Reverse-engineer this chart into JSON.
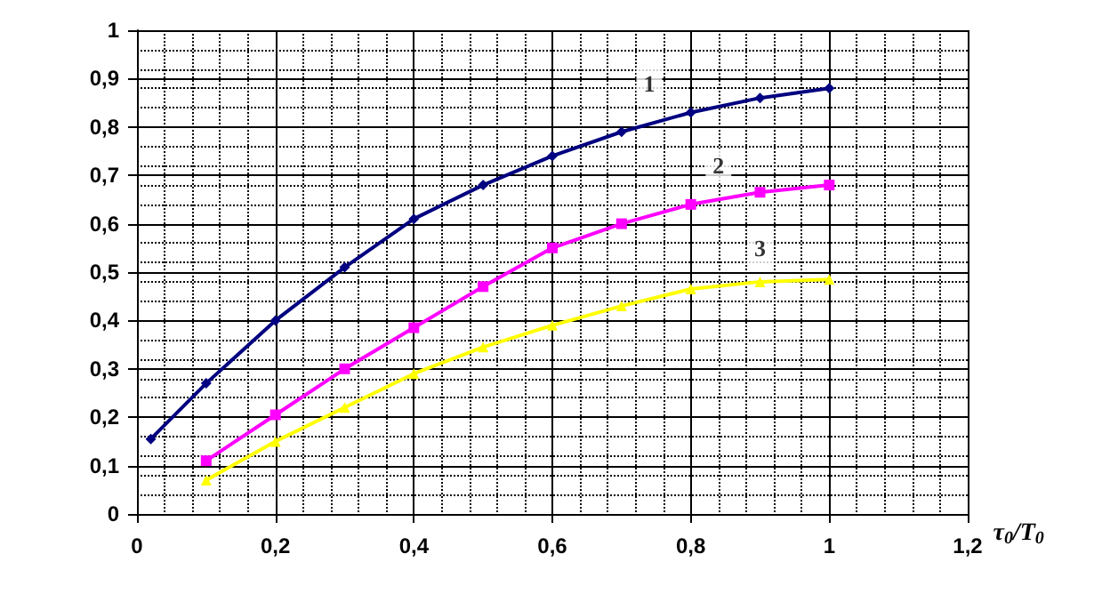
{
  "chart_data": {
    "type": "line",
    "xlabel": "τ$_{0}$/T$_{0}$",
    "xlim": [
      0,
      1.2
    ],
    "xticks": [
      0,
      {
        "value": 0.2,
        "label": "0,2"
      },
      {
        "value": 0.4,
        "label": "0,4"
      },
      {
        "value": 0.6,
        "label": "0,6"
      },
      {
        "value": 0.8,
        "label": "0,8"
      },
      1,
      {
        "value": 1.2,
        "label": "1,2"
      }
    ],
    "ylim": [
      0,
      1
    ],
    "yticks": [
      0,
      {
        "value": 0.1,
        "label": "0,1"
      },
      {
        "value": 0.2,
        "label": "0,2"
      },
      {
        "value": 0.3,
        "label": "0,3"
      },
      {
        "value": 0.4,
        "label": "0,4"
      },
      {
        "value": 0.5,
        "label": "0,5"
      },
      {
        "value": 0.6,
        "label": "0,6"
      },
      {
        "value": 0.7,
        "label": "0,7"
      },
      {
        "value": 0.8,
        "label": "0,8"
      },
      {
        "value": 0.9,
        "label": "0,9"
      },
      1
    ],
    "grid": true,
    "line_style": "solid",
    "series": [
      {
        "color": "#000080",
        "marker": "diamond",
        "x": [
          0.02,
          0.1,
          0.2,
          0.3,
          0.4,
          0.5,
          0.6,
          0.7,
          0.8,
          0.9,
          1.0
        ],
        "values": [
          0.155,
          0.27,
          0.4,
          0.51,
          0.61,
          0.68,
          0.74,
          0.79,
          0.83,
          0.86,
          0.88
        ]
      },
      {
        "color": "#ff00ff",
        "marker": "square",
        "x": [
          0.1,
          0.2,
          0.3,
          0.4,
          0.5,
          0.6,
          0.7,
          0.8,
          0.9,
          1.0
        ],
        "values": [
          0.11,
          0.205,
          0.3,
          0.385,
          0.47,
          0.55,
          0.6,
          0.64,
          0.665,
          0.68
        ]
      },
      {
        "color": "#ffff00",
        "marker": "triangle",
        "x": [
          0.1,
          0.2,
          0.3,
          0.4,
          0.5,
          0.6,
          0.7,
          0.8,
          0.9,
          1.0
        ],
        "values": [
          0.07,
          0.15,
          0.22,
          0.29,
          0.345,
          0.39,
          0.43,
          0.465,
          0.48,
          0.485
        ]
      }
    ],
    "annotations": [
      {
        "text": "1",
        "x": 0.74,
        "y": 0.89
      },
      {
        "text": "2",
        "x": 0.84,
        "y": 0.72
      },
      {
        "text": "3",
        "x": 0.9,
        "y": 0.55
      }
    ]
  }
}
